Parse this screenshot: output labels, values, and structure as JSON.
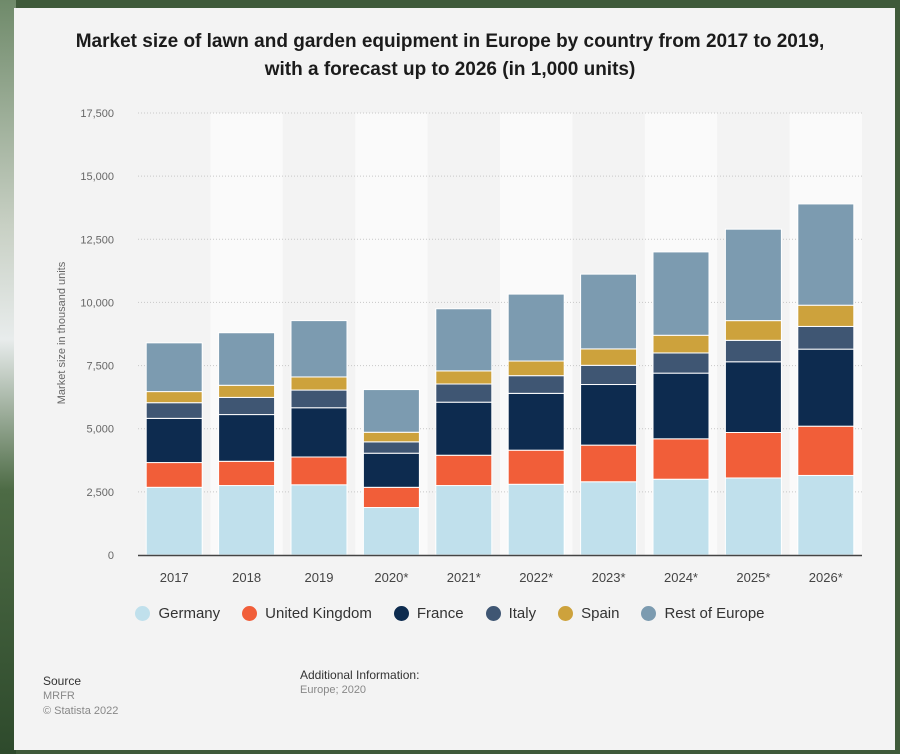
{
  "chart_data": {
    "type": "bar",
    "stacked": true,
    "title": "Market size of lawn and garden equipment in Europe by country from 2017 to 2019, with a forecast up to 2026 (in 1,000 units)",
    "ylabel": "Market size in thousand units",
    "xlabel": "",
    "ylim": [
      0,
      17500
    ],
    "yticks": [
      "17,500",
      "15,000",
      "12,500",
      "10,000",
      "7,500",
      "5,000",
      "2,500",
      "0"
    ],
    "categories": [
      "2017",
      "2018",
      "2019",
      "2020*",
      "2021*",
      "2022*",
      "2023*",
      "2024*",
      "2025*",
      "2026*"
    ],
    "series": [
      {
        "name": "Germany",
        "color": "#c0e0ec",
        "values": [
          2680,
          2750,
          2780,
          1880,
          2750,
          2800,
          2900,
          3000,
          3050,
          3150
        ]
      },
      {
        "name": "United Kingdom",
        "color": "#f15e39",
        "values": [
          980,
          960,
          1100,
          800,
          1200,
          1350,
          1450,
          1600,
          1800,
          1950
        ]
      },
      {
        "name": "France",
        "color": "#0d2b4f",
        "values": [
          1750,
          1850,
          1950,
          1350,
          2100,
          2250,
          2400,
          2600,
          2800,
          3050
        ]
      },
      {
        "name": "Italy",
        "color": "#3f5673",
        "values": [
          620,
          680,
          700,
          450,
          720,
          700,
          760,
          800,
          850,
          900
        ]
      },
      {
        "name": "Spain",
        "color": "#cda23c",
        "values": [
          440,
          480,
          520,
          380,
          520,
          580,
          650,
          700,
          780,
          840
        ]
      },
      {
        "name": "Rest of Europe",
        "color": "#7c9bb0",
        "values": [
          1930,
          2080,
          2230,
          1690,
          2460,
          2650,
          2960,
          3300,
          3620,
          4010
        ]
      }
    ],
    "legend_position": "bottom",
    "grid": true
  },
  "source": {
    "heading": "Source",
    "line1": "MRFR",
    "line2": "© Statista 2022"
  },
  "additional_info": {
    "heading": "Additional Information:",
    "text": "Europe; 2020"
  }
}
